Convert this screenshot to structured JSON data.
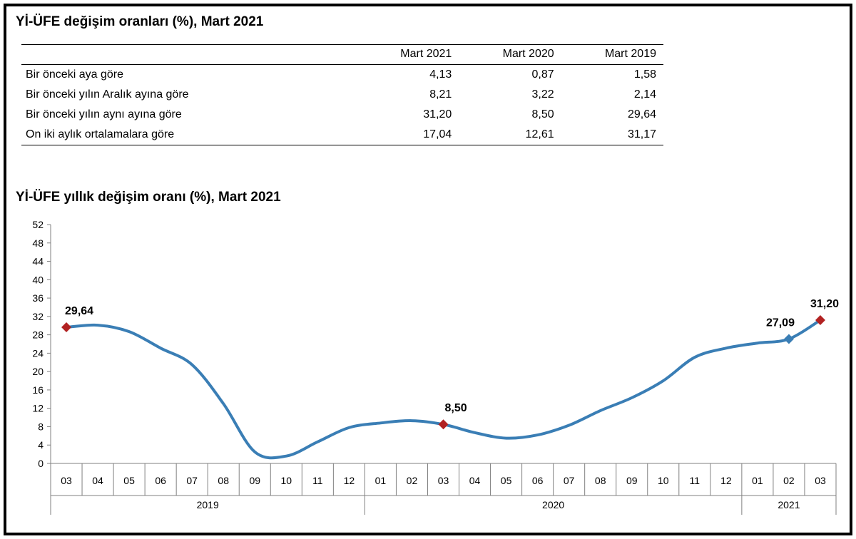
{
  "table": {
    "title": "Yİ-ÜFE değişim oranları (%), Mart 2021",
    "headers": [
      "",
      "Mart 2021",
      "Mart 2020",
      "Mart 2019"
    ],
    "rows": [
      {
        "label": "Bir önceki aya göre",
        "values": [
          "4,13",
          "0,87",
          "1,58"
        ]
      },
      {
        "label": "Bir önceki yılın Aralık ayına göre",
        "values": [
          "8,21",
          "3,22",
          "2,14"
        ]
      },
      {
        "label": "Bir önceki yılın aynı ayına göre",
        "values": [
          "31,20",
          "8,50",
          "29,64"
        ]
      },
      {
        "label": "On iki aylık ortalamalara göre",
        "values": [
          "17,04",
          "12,61",
          "31,17"
        ]
      }
    ]
  },
  "chart_data": {
    "type": "line",
    "title": "Yİ-ÜFE yıllık değişim oranı (%), Mart 2021",
    "categories": [
      "03",
      "04",
      "05",
      "06",
      "07",
      "08",
      "09",
      "10",
      "11",
      "12",
      "01",
      "02",
      "03",
      "04",
      "05",
      "06",
      "07",
      "08",
      "09",
      "10",
      "11",
      "12",
      "01",
      "02",
      "03"
    ],
    "year_groups": [
      {
        "label": "2019",
        "start": 0,
        "end": 9
      },
      {
        "label": "2020",
        "start": 10,
        "end": 21
      },
      {
        "label": "2021",
        "start": 22,
        "end": 24
      }
    ],
    "values": [
      29.64,
      30.1,
      28.7,
      25.1,
      21.5,
      13.0,
      2.5,
      1.6,
      4.7,
      7.8,
      8.8,
      9.3,
      8.5,
      6.7,
      5.5,
      6.2,
      8.3,
      11.5,
      14.3,
      18.0,
      23.1,
      25.1,
      26.2,
      27.09,
      31.2
    ],
    "ylim": [
      0,
      52
    ],
    "yticks": [
      0,
      4,
      8,
      12,
      16,
      20,
      24,
      28,
      32,
      36,
      40,
      44,
      48,
      52
    ],
    "line_color": "#3A7EB5",
    "highlight_points": [
      {
        "index": 0,
        "label": "29,64",
        "color": "#B22222"
      },
      {
        "index": 12,
        "label": "8,50",
        "color": "#B22222"
      },
      {
        "index": 23,
        "label": "27,09",
        "color": "#3A7EB5"
      },
      {
        "index": 24,
        "label": "31,20",
        "color": "#B22222"
      }
    ]
  }
}
